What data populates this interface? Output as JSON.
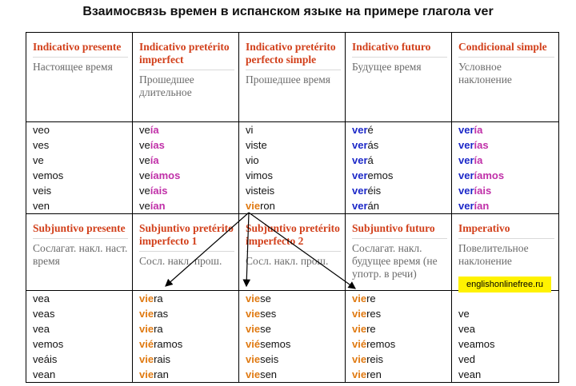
{
  "title": "Взаимосвязь времен в испанском языке на примере глагола ver",
  "top_headers": [
    {
      "title": "Indicativo presente",
      "subtitle": "Настоящее время"
    },
    {
      "title": "Indicativo pretérito imperfect",
      "subtitle": "Прошедшее длительное"
    },
    {
      "title": "Indicativo pretérito perfecto simple",
      "subtitle": "Прошедшее время"
    },
    {
      "title": "Indicativo futuro",
      "subtitle": "Будущее время"
    },
    {
      "title": "Condicional simple",
      "subtitle": "Условное наклонение"
    }
  ],
  "top_forms": [
    [
      [
        {
          "t": "veo",
          "s": ""
        }
      ],
      [
        {
          "t": "ves",
          "s": ""
        }
      ],
      [
        {
          "t": "ve",
          "s": ""
        }
      ],
      [
        {
          "t": "vemos",
          "s": ""
        }
      ],
      [
        {
          "t": "veis",
          "s": ""
        }
      ],
      [
        {
          "t": "ven",
          "s": ""
        }
      ]
    ],
    [
      [
        {
          "t": "ve",
          "s": ""
        },
        {
          "t": "ía",
          "s": "pk"
        }
      ],
      [
        {
          "t": "ve",
          "s": ""
        },
        {
          "t": "ías",
          "s": "pk"
        }
      ],
      [
        {
          "t": "ve",
          "s": ""
        },
        {
          "t": "ía",
          "s": "pk"
        }
      ],
      [
        {
          "t": "ve",
          "s": ""
        },
        {
          "t": "íamos",
          "s": "pk"
        }
      ],
      [
        {
          "t": "ve",
          "s": ""
        },
        {
          "t": "íais",
          "s": "pk"
        }
      ],
      [
        {
          "t": "ve",
          "s": ""
        },
        {
          "t": "ían",
          "s": "pk"
        }
      ]
    ],
    [
      [
        {
          "t": "vi",
          "s": ""
        }
      ],
      [
        {
          "t": "viste",
          "s": ""
        }
      ],
      [
        {
          "t": "vio",
          "s": ""
        }
      ],
      [
        {
          "t": "vimos",
          "s": ""
        }
      ],
      [
        {
          "t": "visteis",
          "s": ""
        }
      ],
      [
        {
          "t": "vie",
          "s": "or"
        },
        {
          "t": "ron",
          "s": ""
        }
      ]
    ],
    [
      [
        {
          "t": "ver",
          "s": "bl"
        },
        {
          "t": "é",
          "s": ""
        }
      ],
      [
        {
          "t": "ver",
          "s": "bl"
        },
        {
          "t": "ás",
          "s": ""
        }
      ],
      [
        {
          "t": "ver",
          "s": "bl"
        },
        {
          "t": "á",
          "s": ""
        }
      ],
      [
        {
          "t": "ver",
          "s": "bl"
        },
        {
          "t": "emos",
          "s": ""
        }
      ],
      [
        {
          "t": "ver",
          "s": "bl"
        },
        {
          "t": "éis",
          "s": ""
        }
      ],
      [
        {
          "t": "ver",
          "s": "bl"
        },
        {
          "t": "án",
          "s": ""
        }
      ]
    ],
    [
      [
        {
          "t": "ver",
          "s": "bl"
        },
        {
          "t": "ía",
          "s": "pk"
        }
      ],
      [
        {
          "t": "ver",
          "s": "bl"
        },
        {
          "t": "ías",
          "s": "pk"
        }
      ],
      [
        {
          "t": "ver",
          "s": "bl"
        },
        {
          "t": "ía",
          "s": "pk"
        }
      ],
      [
        {
          "t": "ver",
          "s": "bl"
        },
        {
          "t": "íamos",
          "s": "pk"
        }
      ],
      [
        {
          "t": "ver",
          "s": "bl"
        },
        {
          "t": "íais",
          "s": "pk"
        }
      ],
      [
        {
          "t": "ver",
          "s": "bl"
        },
        {
          "t": "ían",
          "s": "pk"
        }
      ]
    ]
  ],
  "bottom_headers": [
    {
      "title": "Subjuntivo presente",
      "subtitle": "Сослагат. накл. наст. время"
    },
    {
      "title": "Subjuntivo pretérito imperfecto 1",
      "subtitle": "Сосл. накл. прош."
    },
    {
      "title": "Subjuntivo pretérito imperfecto 2",
      "subtitle": "Сосл. накл. прош."
    },
    {
      "title": "Subjuntivo futuro",
      "subtitle": "Сослагат. накл. будущее время (не употр. в речи)"
    },
    {
      "title": "Imperativo",
      "subtitle": "Повелительное наклонение"
    }
  ],
  "bottom_forms": [
    [
      [
        {
          "t": "vea",
          "s": ""
        }
      ],
      [
        {
          "t": "veas",
          "s": ""
        }
      ],
      [
        {
          "t": "vea",
          "s": ""
        }
      ],
      [
        {
          "t": "vemos",
          "s": ""
        }
      ],
      [
        {
          "t": "veáis",
          "s": ""
        }
      ],
      [
        {
          "t": "vean",
          "s": ""
        }
      ]
    ],
    [
      [
        {
          "t": "vie",
          "s": "or"
        },
        {
          "t": "ra",
          "s": ""
        }
      ],
      [
        {
          "t": "vie",
          "s": "or"
        },
        {
          "t": "ras",
          "s": ""
        }
      ],
      [
        {
          "t": "vie",
          "s": "or"
        },
        {
          "t": "ra",
          "s": ""
        }
      ],
      [
        {
          "t": "vié",
          "s": "or"
        },
        {
          "t": "ramos",
          "s": ""
        }
      ],
      [
        {
          "t": "vie",
          "s": "or"
        },
        {
          "t": "rais",
          "s": ""
        }
      ],
      [
        {
          "t": "vie",
          "s": "or"
        },
        {
          "t": "ran",
          "s": ""
        }
      ]
    ],
    [
      [
        {
          "t": "vie",
          "s": "or"
        },
        {
          "t": "se",
          "s": ""
        }
      ],
      [
        {
          "t": "vie",
          "s": "or"
        },
        {
          "t": "ses",
          "s": ""
        }
      ],
      [
        {
          "t": "vie",
          "s": "or"
        },
        {
          "t": "se",
          "s": ""
        }
      ],
      [
        {
          "t": "vié",
          "s": "or"
        },
        {
          "t": "semos",
          "s": ""
        }
      ],
      [
        {
          "t": "vie",
          "s": "or"
        },
        {
          "t": "seis",
          "s": ""
        }
      ],
      [
        {
          "t": "vie",
          "s": "or"
        },
        {
          "t": "sen",
          "s": ""
        }
      ]
    ],
    [
      [
        {
          "t": "vie",
          "s": "or"
        },
        {
          "t": "re",
          "s": ""
        }
      ],
      [
        {
          "t": "vie",
          "s": "or"
        },
        {
          "t": "res",
          "s": ""
        }
      ],
      [
        {
          "t": "vie",
          "s": "or"
        },
        {
          "t": "re",
          "s": ""
        }
      ],
      [
        {
          "t": "vié",
          "s": "or"
        },
        {
          "t": "remos",
          "s": ""
        }
      ],
      [
        {
          "t": "vie",
          "s": "or"
        },
        {
          "t": "reis",
          "s": ""
        }
      ],
      [
        {
          "t": "vie",
          "s": "or"
        },
        {
          "t": "ren",
          "s": ""
        }
      ]
    ],
    [
      [
        {
          "t": "",
          "s": ""
        }
      ],
      [
        {
          "t": "ve",
          "s": ""
        }
      ],
      [
        {
          "t": "vea",
          "s": ""
        }
      ],
      [
        {
          "t": "veamos",
          "s": ""
        }
      ],
      [
        {
          "t": "ved",
          "s": ""
        }
      ],
      [
        {
          "t": "vean",
          "s": ""
        }
      ]
    ]
  ],
  "watermark": "englishonlinefree.ru",
  "colors": {
    "header_red": "#d2401b",
    "ending_pink": "#c030a8",
    "stem_blue": "#1c28c8",
    "stem_orange": "#e07a12",
    "watermark_bg": "#fff200"
  }
}
